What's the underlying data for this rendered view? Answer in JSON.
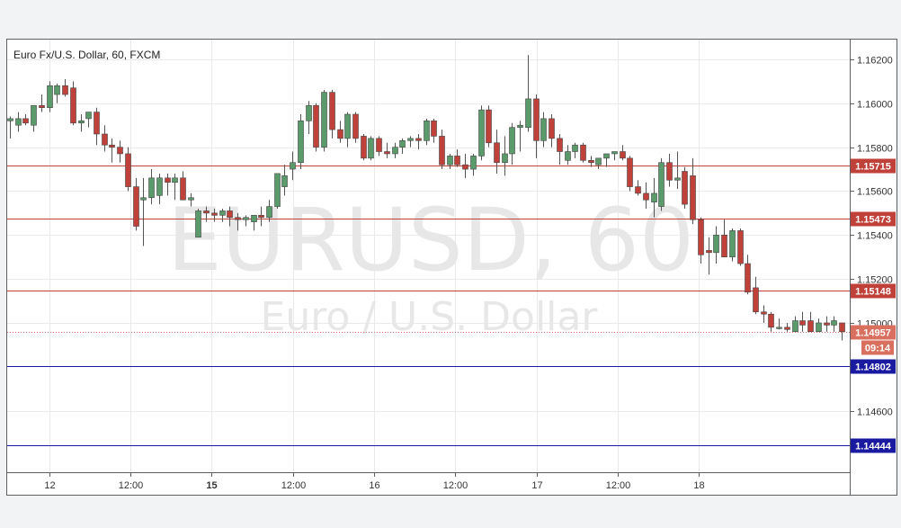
{
  "chart_data": {
    "type": "candlestick",
    "title": "Euro Fx/U.S. Dollar, 60, FXCM",
    "watermark": {
      "symbol": "EURUSD, 60",
      "description": "Euro / U.S. Dollar"
    },
    "x_ticks": [
      "12",
      "12:00",
      "15",
      "12:00",
      "16",
      "12:00",
      "17",
      "12:00",
      "18"
    ],
    "y_ticks": [
      "1.16200",
      "1.16000",
      "1.15800",
      "1.15600",
      "1.15400",
      "1.15200",
      "1.15000",
      "1.14600"
    ],
    "ylim": [
      1.1432,
      1.1629
    ],
    "grid": true,
    "colors": {
      "up": "#5b9a6b",
      "down": "#c0403a",
      "resistance": "#c0403a",
      "support": "#1a1aa0",
      "price": "#d9705f"
    },
    "levels": [
      {
        "value": 1.15715,
        "label": "1.15715",
        "kind": "resistance"
      },
      {
        "value": 1.15473,
        "label": "1.15473",
        "kind": "resistance"
      },
      {
        "value": 1.15148,
        "label": "1.15148",
        "kind": "resistance"
      },
      {
        "value": 1.14802,
        "label": "1.14802",
        "kind": "support"
      },
      {
        "value": 1.14444,
        "label": "1.14444",
        "kind": "support"
      }
    ],
    "last_price": {
      "value": 1.14957,
      "label": "1.14957",
      "countdown": "09:14"
    },
    "candles": [
      [
        1.1592,
        1.1594,
        1.1584,
        1.1593
      ],
      [
        1.159,
        1.1596,
        1.1587,
        1.1593
      ],
      [
        1.1593,
        1.1595,
        1.159,
        1.1591
      ],
      [
        1.159,
        1.1599,
        1.1587,
        1.1599
      ],
      [
        1.1599,
        1.1604,
        1.1596,
        1.1598
      ],
      [
        1.1598,
        1.161,
        1.1596,
        1.1608
      ],
      [
        1.1604,
        1.1609,
        1.16,
        1.1608
      ],
      [
        1.1608,
        1.1611,
        1.1603,
        1.1604
      ],
      [
        1.1607,
        1.161,
        1.159,
        1.1591
      ],
      [
        1.1591,
        1.1595,
        1.1587,
        1.1592
      ],
      [
        1.1593,
        1.1596,
        1.1589,
        1.1596
      ],
      [
        1.1596,
        1.1598,
        1.1581,
        1.1586
      ],
      [
        1.1586,
        1.159,
        1.1578,
        1.1581
      ],
      [
        1.1581,
        1.1584,
        1.1573,
        1.158
      ],
      [
        1.158,
        1.1583,
        1.1573,
        1.1577
      ],
      [
        1.1577,
        1.158,
        1.156,
        1.1562
      ],
      [
        1.1562,
        1.1566,
        1.1542,
        1.1544
      ],
      [
        1.1556,
        1.1566,
        1.1535,
        1.1557
      ],
      [
        1.1557,
        1.157,
        1.1554,
        1.1566
      ],
      [
        1.1558,
        1.1568,
        1.1554,
        1.1566
      ],
      [
        1.1566,
        1.1568,
        1.1558,
        1.1564
      ],
      [
        1.1564,
        1.1568,
        1.1556,
        1.1566
      ],
      [
        1.1566,
        1.1569,
        1.1556,
        1.1556
      ],
      [
        1.1556,
        1.1559,
        1.1553,
        1.1557
      ],
      [
        1.1539,
        1.1552,
        1.1539,
        1.1551
      ],
      [
        1.1551,
        1.1553,
        1.1546,
        1.155
      ],
      [
        1.155,
        1.1552,
        1.1546,
        1.1549
      ],
      [
        1.1549,
        1.1552,
        1.1546,
        1.1551
      ],
      [
        1.1551,
        1.1553,
        1.1544,
        1.1548
      ],
      [
        1.1548,
        1.155,
        1.1542,
        1.1547
      ],
      [
        1.1547,
        1.1549,
        1.1544,
        1.1548
      ],
      [
        1.1546,
        1.1549,
        1.1542,
        1.1549
      ],
      [
        1.1549,
        1.1553,
        1.1544,
        1.1548
      ],
      [
        1.1548,
        1.1556,
        1.1546,
        1.1553
      ],
      [
        1.1553,
        1.1568,
        1.1552,
        1.1568
      ],
      [
        1.1562,
        1.1572,
        1.1558,
        1.1567
      ],
      [
        1.157,
        1.1578,
        1.1565,
        1.1573
      ],
      [
        1.1573,
        1.1595,
        1.157,
        1.1592
      ],
      [
        1.1592,
        1.1601,
        1.1586,
        1.1599
      ],
      [
        1.1599,
        1.16,
        1.1578,
        1.158
      ],
      [
        1.158,
        1.1606,
        1.1578,
        1.1605
      ],
      [
        1.1605,
        1.1606,
        1.1584,
        1.1588
      ],
      [
        1.1588,
        1.1592,
        1.1582,
        1.1584
      ],
      [
        1.1584,
        1.1596,
        1.158,
        1.1595
      ],
      [
        1.1595,
        1.1596,
        1.1582,
        1.1584
      ],
      [
        1.1585,
        1.1586,
        1.1574,
        1.1575
      ],
      [
        1.1575,
        1.1585,
        1.1574,
        1.1584
      ],
      [
        1.1584,
        1.1585,
        1.1576,
        1.1578
      ],
      [
        1.1578,
        1.1582,
        1.1575,
        1.1577
      ],
      [
        1.1577,
        1.1582,
        1.1575,
        1.158
      ],
      [
        1.158,
        1.1584,
        1.1577,
        1.1583
      ],
      [
        1.1583,
        1.1585,
        1.158,
        1.1584
      ],
      [
        1.1584,
        1.1586,
        1.1579,
        1.1583
      ],
      [
        1.1583,
        1.1593,
        1.1581,
        1.1592
      ],
      [
        1.1592,
        1.1593,
        1.1582,
        1.1585
      ],
      [
        1.1585,
        1.1588,
        1.157,
        1.1572
      ],
      [
        1.1572,
        1.1577,
        1.157,
        1.1576
      ],
      [
        1.1576,
        1.1579,
        1.1571,
        1.1572
      ],
      [
        1.1572,
        1.1577,
        1.1566,
        1.157
      ],
      [
        1.157,
        1.1577,
        1.1567,
        1.1576
      ],
      [
        1.1576,
        1.1599,
        1.1574,
        1.1597
      ],
      [
        1.1597,
        1.1599,
        1.158,
        1.1582
      ],
      [
        1.1582,
        1.1588,
        1.1568,
        1.1573
      ],
      [
        1.1573,
        1.1585,
        1.1567,
        1.1577
      ],
      [
        1.1577,
        1.1591,
        1.1572,
        1.1589
      ],
      [
        1.1589,
        1.1592,
        1.1578,
        1.159
      ],
      [
        1.1589,
        1.1622,
        1.1587,
        1.1602
      ],
      [
        1.1602,
        1.1604,
        1.1575,
        1.1583
      ],
      [
        1.1583,
        1.1596,
        1.158,
        1.1593
      ],
      [
        1.1593,
        1.1595,
        1.158,
        1.1584
      ],
      [
        1.1584,
        1.1586,
        1.1572,
        1.1578
      ],
      [
        1.1574,
        1.1581,
        1.1572,
        1.1578
      ],
      [
        1.1578,
        1.1582,
        1.1575,
        1.1581
      ],
      [
        1.1581,
        1.1582,
        1.1573,
        1.1574
      ],
      [
        1.1574,
        1.1576,
        1.1571,
        1.1573
      ],
      [
        1.1572,
        1.1575,
        1.157,
        1.1575
      ],
      [
        1.1575,
        1.1577,
        1.1571,
        1.1577
      ],
      [
        1.1577,
        1.1578,
        1.1574,
        1.1578
      ],
      [
        1.1578,
        1.1581,
        1.1574,
        1.1575
      ],
      [
        1.1575,
        1.1576,
        1.156,
        1.1562
      ],
      [
        1.1562,
        1.1565,
        1.1558,
        1.1559
      ],
      [
        1.1559,
        1.1564,
        1.1552,
        1.1556
      ],
      [
        1.1555,
        1.1566,
        1.1548,
        1.1559
      ],
      [
        1.1553,
        1.1575,
        1.1551,
        1.1573
      ],
      [
        1.1573,
        1.1577,
        1.1562,
        1.1565
      ],
      [
        1.1565,
        1.1578,
        1.1561,
        1.1566
      ],
      [
        1.1569,
        1.1571,
        1.1552,
        1.1554
      ],
      [
        1.1567,
        1.1575,
        1.1545,
        1.1547
      ],
      [
        1.1547,
        1.1548,
        1.1527,
        1.1531
      ],
      [
        1.1533,
        1.1539,
        1.1522,
        1.1532
      ],
      [
        1.1532,
        1.1544,
        1.1527,
        1.154
      ],
      [
        1.154,
        1.1547,
        1.153,
        1.153
      ],
      [
        1.153,
        1.1543,
        1.1528,
        1.1542
      ],
      [
        1.1542,
        1.1543,
        1.1526,
        1.1527
      ],
      [
        1.1527,
        1.1531,
        1.1513,
        1.1514
      ],
      [
        1.1516,
        1.1521,
        1.1504,
        1.1505
      ],
      [
        1.1505,
        1.1508,
        1.15,
        1.1504
      ],
      [
        1.1504,
        1.1505,
        1.1496,
        1.1498
      ],
      [
        1.1498,
        1.1502,
        1.1497,
        1.1498
      ],
      [
        1.1498,
        1.15,
        1.1496,
        1.1497
      ],
      [
        1.1496,
        1.1503,
        1.1496,
        1.1501
      ],
      [
        1.1501,
        1.1505,
        1.1496,
        1.1499
      ],
      [
        1.1501,
        1.1505,
        1.1496,
        1.1496
      ],
      [
        1.1496,
        1.1502,
        1.1496,
        1.15
      ],
      [
        1.15,
        1.1503,
        1.1496,
        1.1499
      ],
      [
        1.1499,
        1.1503,
        1.1496,
        1.1501
      ],
      [
        1.15,
        1.15,
        1.1492,
        1.1496
      ]
    ]
  }
}
